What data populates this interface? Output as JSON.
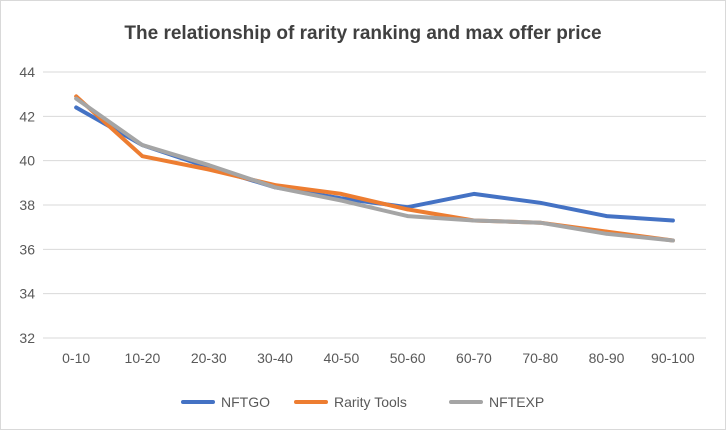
{
  "chart_data": {
    "type": "line",
    "title": "The relationship of rarity ranking and max offer price",
    "xlabel": "",
    "ylabel": "",
    "categories": [
      "0-10",
      "10-20",
      "20-30",
      "30-40",
      "40-50",
      "50-60",
      "60-70",
      "70-80",
      "80-90",
      "90-100"
    ],
    "ylim": [
      32,
      44
    ],
    "yticks": [
      32,
      34,
      36,
      38,
      40,
      42,
      44
    ],
    "grid": true,
    "legend": "bottom",
    "series": [
      {
        "name": "NFTGO",
        "color": "#4472C4",
        "values": [
          42.4,
          40.7,
          39.7,
          38.8,
          38.3,
          37.9,
          38.5,
          38.1,
          37.5,
          37.3
        ]
      },
      {
        "name": "Rarity Tools",
        "color": "#ED7D31",
        "values": [
          42.9,
          40.2,
          39.6,
          38.9,
          38.5,
          37.8,
          37.3,
          37.2,
          36.8,
          36.4
        ]
      },
      {
        "name": "NFTEXP",
        "color": "#A5A5A5",
        "values": [
          42.8,
          40.7,
          39.8,
          38.8,
          38.2,
          37.5,
          37.3,
          37.2,
          36.7,
          36.4
        ]
      }
    ]
  }
}
